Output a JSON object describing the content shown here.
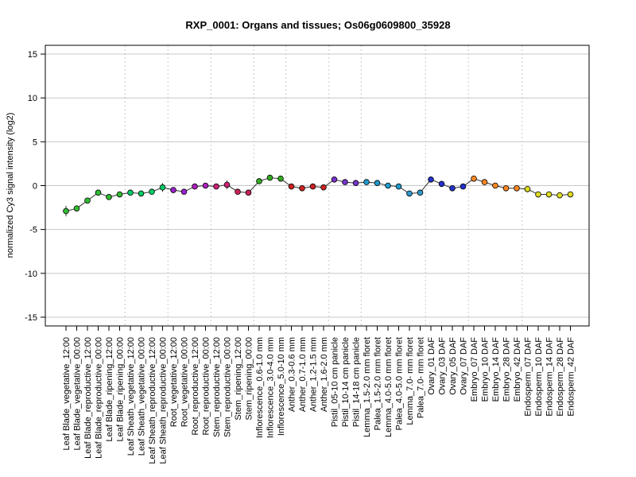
{
  "chart_data": {
    "type": "line",
    "title": "RXP_0001: Organs and tissues; Os06g0609800_35928",
    "xlabel": "",
    "ylabel": "normalized Cy3 signal intensity (log2)",
    "ylim": [
      -16,
      16
    ],
    "yticks": [
      -15,
      -10,
      -5,
      0,
      5,
      10,
      15
    ],
    "grid": {
      "horizontal": [
        -15,
        -10,
        -5,
        0,
        5,
        10,
        15
      ],
      "vertical_group_separators": true
    },
    "categories": [
      "Leaf Blade_vegetative_12:00",
      "Leaf Blade_vegetative_00:00",
      "Leaf Blade_reproductive_12:00",
      "Leaf Blade_reproductive_00:00",
      "Leaf Blade_ripening_12:00",
      "Leaf Blade_ripening_00:00",
      "Leaf Sheath_vegetative_12:00",
      "Leaf Sheath_vegetative_00:00",
      "Leaf Sheath_reproductive_12:00",
      "Leaf Sheath_reproductive_00:00",
      "Root_vegetative_12:00",
      "Root_vegetative_00:00",
      "Root_reproductive_12:00",
      "Root_reproductive_00:00",
      "Stem_reproductive_12:00",
      "Stem_reproductive_00:00",
      "Stem_ripening_12:00",
      "Stem_ripening_00:00",
      "Inflorescence_0.6-1.0 mm",
      "Inflorescence_3.0-4.0 mm",
      "Inflorescence_5.0-10 mm",
      "Anther_0.3-0.6 mm",
      "Anther_0.7-1.0 mm",
      "Anther_1.2-1.5 mm",
      "Anther_1.6-2.0 mm",
      "Pistil_05-10 cm panicle",
      "Pistil_10-14 cm panicle",
      "Pistil_14-18 cm panicle",
      "Lemma_1.5-2.0 mm floret",
      "Palea_1.5-2.0 mm floret",
      "Lemma_4.0-5.0 mm floret",
      "Palea_4.0-5.0 mm floret",
      "Lemma_7.0- mm floret",
      "Palea_7.0- mm floret",
      "Ovary_01 DAF",
      "Ovary_03 DAF",
      "Ovary_05 DAF",
      "Ovary_07 DAF",
      "Embryo_07 DAF",
      "Embryo_10 DAF",
      "Embryo_14 DAF",
      "Embryo_28 DAF",
      "Embryo_42 DAF",
      "Endosperm_07 DAF",
      "Endosperm_10 DAF",
      "Endosperm_14 DAF",
      "Endosperm_28 DAF",
      "Endosperm_42 DAF"
    ],
    "values": [
      -2.9,
      -2.6,
      -1.7,
      -0.8,
      -1.3,
      -1.0,
      -0.8,
      -0.9,
      -0.7,
      -0.2,
      -0.5,
      -0.7,
      -0.1,
      0.0,
      -0.1,
      0.1,
      -0.7,
      -0.8,
      0.5,
      0.9,
      0.8,
      -0.1,
      -0.3,
      -0.1,
      -0.2,
      0.7,
      0.4,
      0.3,
      0.4,
      0.3,
      0.0,
      -0.1,
      -0.9,
      -0.8,
      0.7,
      0.2,
      -0.3,
      -0.1,
      0.8,
      0.4,
      0.0,
      -0.3,
      -0.3,
      -0.4,
      -1.0,
      -1.0,
      -1.1,
      -1.0
    ],
    "errors": [
      0.6,
      0.2,
      0.2,
      0.1,
      0.1,
      0.1,
      0.1,
      0.1,
      0.1,
      0.5,
      0.1,
      0.1,
      0.1,
      0.2,
      0.1,
      0.5,
      0.1,
      0.1,
      0.1,
      0.1,
      0.1,
      0.2,
      0.3,
      0.3,
      0.3,
      0.3,
      0.1,
      0.1,
      0.1,
      0.1,
      0.1,
      0.1,
      0.1,
      0.1,
      0.1,
      0.1,
      0.1,
      0.1,
      0.1,
      0.1,
      0.1,
      0.1,
      0.1,
      0.1,
      0.1,
      0.1,
      0.1,
      0.1
    ],
    "point_colors": [
      "#33bb33",
      "#33bb33",
      "#33bb33",
      "#33bb33",
      "#33bb33",
      "#33bb33",
      "#00cc66",
      "#00cc66",
      "#00cc66",
      "#00cc66",
      "#9922cc",
      "#9922cc",
      "#aa22bb",
      "#aa22bb",
      "#cc2277",
      "#cc2277",
      "#cc2255",
      "#cc2255",
      "#33aa22",
      "#33aa22",
      "#33aa22",
      "#cc2222",
      "#cc2222",
      "#cc2222",
      "#cc2222",
      "#7733cc",
      "#7733cc",
      "#7733cc",
      "#2299cc",
      "#2299cc",
      "#2299cc",
      "#2299cc",
      "#3399cc",
      "#3399cc",
      "#2233cc",
      "#2233cc",
      "#2233cc",
      "#2233cc",
      "#ff8822",
      "#ff8822",
      "#ff8822",
      "#ff8822",
      "#ff8822",
      "#dddd22",
      "#dddd22",
      "#dddd22",
      "#dddd22",
      "#dddd22"
    ],
    "group_boundaries_after_index": [
      5,
      9,
      13,
      17,
      20,
      24,
      27,
      33,
      37,
      42
    ]
  }
}
